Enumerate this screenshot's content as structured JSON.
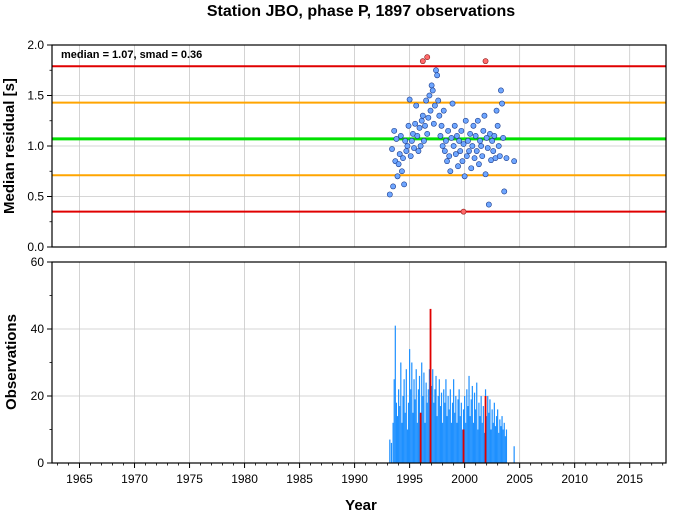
{
  "chart_data": [
    {
      "type": "scatter",
      "title": "Station JBO, phase P, 1897 observations",
      "ylabel": "Median residual [s]",
      "xlim": [
        1962.5,
        2018.3
      ],
      "ylim": [
        0.0,
        2.0
      ],
      "y_ticks": [
        "0.0",
        "0.5",
        "1.0",
        "1.5",
        "2.0"
      ],
      "annotation": "median = 1.07, smad = 0.36",
      "grid": true,
      "reference_lines": [
        {
          "y": 1.07,
          "color": "#00e000"
        },
        {
          "y": 1.43,
          "color": "#ffa500"
        },
        {
          "y": 0.71,
          "color": "#ffa500"
        },
        {
          "y": 1.79,
          "color": "#e00000"
        },
        {
          "y": 0.35,
          "color": "#e00000"
        }
      ],
      "point_color": "#6ea6ff",
      "outlier_color": "#ff6a6a",
      "points": [
        [
          1993.2,
          0.52
        ],
        [
          1993.4,
          0.97
        ],
        [
          1993.5,
          0.6
        ],
        [
          1993.6,
          1.15
        ],
        [
          1993.7,
          0.85
        ],
        [
          1993.8,
          1.07
        ],
        [
          1993.9,
          0.7
        ],
        [
          1994.0,
          0.82
        ],
        [
          1994.1,
          0.92
        ],
        [
          1994.2,
          1.1
        ],
        [
          1994.3,
          0.75
        ],
        [
          1994.4,
          0.88
        ],
        [
          1994.5,
          0.62
        ],
        [
          1994.6,
          1.05
        ],
        [
          1994.7,
          0.95
        ],
        [
          1994.8,
          1.0
        ],
        [
          1994.9,
          1.2
        ],
        [
          1995.0,
          1.46
        ],
        [
          1995.1,
          0.9
        ],
        [
          1995.2,
          1.05
        ],
        [
          1995.3,
          1.12
        ],
        [
          1995.4,
          0.98
        ],
        [
          1995.5,
          1.22
        ],
        [
          1995.6,
          1.4
        ],
        [
          1995.7,
          1.1
        ],
        [
          1995.8,
          0.95
        ],
        [
          1995.9,
          1.18
        ],
        [
          1996.0,
          1.0
        ],
        [
          1996.1,
          1.25
        ],
        [
          1996.2,
          1.3
        ],
        [
          1996.3,
          1.05
        ],
        [
          1996.4,
          1.2
        ],
        [
          1996.5,
          1.45
        ],
        [
          1996.6,
          1.12
        ],
        [
          1996.7,
          1.28
        ],
        [
          1996.8,
          1.5
        ],
        [
          1996.9,
          1.35
        ],
        [
          1997.0,
          1.6
        ],
        [
          1997.1,
          1.55
        ],
        [
          1997.2,
          1.22
        ],
        [
          1997.3,
          1.4
        ],
        [
          1997.4,
          1.75
        ],
        [
          1997.5,
          1.7
        ],
        [
          1997.6,
          1.45
        ],
        [
          1997.7,
          1.3
        ],
        [
          1997.8,
          1.1
        ],
        [
          1997.9,
          1.2
        ],
        [
          1998.0,
          1.0
        ],
        [
          1998.1,
          1.35
        ],
        [
          1998.2,
          0.95
        ],
        [
          1998.3,
          1.05
        ],
        [
          1998.4,
          0.85
        ],
        [
          1998.5,
          1.15
        ],
        [
          1998.6,
          0.9
        ],
        [
          1998.7,
          0.75
        ],
        [
          1998.8,
          1.08
        ],
        [
          1998.9,
          1.42
        ],
        [
          1999.0,
          1.0
        ],
        [
          1999.1,
          1.2
        ],
        [
          1999.2,
          0.92
        ],
        [
          1999.3,
          1.1
        ],
        [
          1999.4,
          0.8
        ],
        [
          1999.5,
          1.05
        ],
        [
          1999.6,
          0.95
        ],
        [
          1999.7,
          1.15
        ],
        [
          1999.8,
          0.85
        ],
        [
          1999.9,
          1.02
        ],
        [
          2000.0,
          0.7
        ],
        [
          2000.1,
          1.25
        ],
        [
          2000.2,
          0.9
        ],
        [
          2000.3,
          1.05
        ],
        [
          2000.4,
          0.95
        ],
        [
          2000.5,
          1.12
        ],
        [
          2000.6,
          0.78
        ],
        [
          2000.7,
          1.0
        ],
        [
          2000.8,
          1.2
        ],
        [
          2000.9,
          0.88
        ],
        [
          2001.0,
          1.1
        ],
        [
          2001.1,
          0.95
        ],
        [
          2001.2,
          1.25
        ],
        [
          2001.3,
          0.82
        ],
        [
          2001.4,
          1.05
        ],
        [
          2001.5,
          1.0
        ],
        [
          2001.6,
          0.9
        ],
        [
          2001.7,
          1.15
        ],
        [
          2001.8,
          1.3
        ],
        [
          2001.9,
          0.72
        ],
        [
          2002.0,
          1.08
        ],
        [
          2002.1,
          0.98
        ],
        [
          2002.2,
          0.42
        ],
        [
          2002.3,
          1.12
        ],
        [
          2002.4,
          0.86
        ],
        [
          2002.5,
          1.05
        ],
        [
          2002.6,
          0.95
        ],
        [
          2002.7,
          1.1
        ],
        [
          2002.8,
          0.88
        ],
        [
          2002.9,
          1.35
        ],
        [
          2003.0,
          1.2
        ],
        [
          2003.1,
          1.0
        ],
        [
          2003.2,
          0.9
        ],
        [
          2003.3,
          1.55
        ],
        [
          2003.4,
          1.42
        ],
        [
          2003.5,
          1.08
        ],
        [
          2003.6,
          0.55
        ],
        [
          2003.8,
          0.88
        ],
        [
          2004.5,
          0.85
        ]
      ],
      "outliers": [
        [
          1996.2,
          1.84
        ],
        [
          1996.6,
          1.88
        ],
        [
          2001.9,
          1.84
        ],
        [
          1999.9,
          0.35
        ]
      ]
    },
    {
      "type": "bar",
      "ylabel": "Observations",
      "xlabel": "Year",
      "xlim": [
        1962.5,
        2018.3
      ],
      "ylim": [
        0,
        60
      ],
      "y_ticks": [
        "0",
        "20",
        "40",
        "60"
      ],
      "x_ticks": [
        "1965",
        "1970",
        "1975",
        "1980",
        "1985",
        "1990",
        "1995",
        "2000",
        "2005",
        "2010",
        "2015"
      ],
      "grid": true,
      "bar_color": "#1e90ff",
      "highlight_color": "#e00000",
      "bars": [
        [
          1993.2,
          7
        ],
        [
          1993.35,
          6
        ],
        [
          1993.5,
          12
        ],
        [
          1993.6,
          25
        ],
        [
          1993.7,
          41
        ],
        [
          1993.8,
          18
        ],
        [
          1993.9,
          14
        ],
        [
          1994.0,
          22
        ],
        [
          1994.1,
          17
        ],
        [
          1994.2,
          30
        ],
        [
          1994.3,
          12
        ],
        [
          1994.4,
          20
        ],
        [
          1994.5,
          25
        ],
        [
          1994.6,
          15
        ],
        [
          1994.7,
          28
        ],
        [
          1994.8,
          10
        ],
        [
          1994.9,
          18
        ],
        [
          1995.0,
          34
        ],
        [
          1995.1,
          22
        ],
        [
          1995.2,
          30
        ],
        [
          1995.3,
          15
        ],
        [
          1995.4,
          25
        ],
        [
          1995.5,
          19
        ],
        [
          1995.6,
          28
        ],
        [
          1995.7,
          12
        ],
        [
          1995.8,
          22
        ],
        [
          1995.9,
          26
        ],
        [
          1996.0,
          15
        ],
        [
          1996.1,
          30
        ],
        [
          1996.2,
          20
        ],
        [
          1996.3,
          27
        ],
        [
          1996.4,
          12
        ],
        [
          1996.5,
          24
        ],
        [
          1996.6,
          18
        ],
        [
          1996.7,
          22
        ],
        [
          1996.8,
          28
        ],
        [
          1996.9,
          15
        ],
        [
          1997.0,
          23
        ],
        [
          1997.1,
          28
        ],
        [
          1997.2,
          18
        ],
        [
          1997.3,
          22
        ],
        [
          1997.4,
          26
        ],
        [
          1997.5,
          14
        ],
        [
          1997.6,
          20
        ],
        [
          1997.7,
          25
        ],
        [
          1997.8,
          17
        ],
        [
          1997.9,
          21
        ],
        [
          1998.0,
          12
        ],
        [
          1998.1,
          22
        ],
        [
          1998.2,
          18
        ],
        [
          1998.3,
          25
        ],
        [
          1998.4,
          14
        ],
        [
          1998.5,
          20
        ],
        [
          1998.6,
          16
        ],
        [
          1998.7,
          22
        ],
        [
          1998.8,
          12
        ],
        [
          1998.9,
          18
        ],
        [
          1999.0,
          25
        ],
        [
          1999.1,
          15
        ],
        [
          1999.2,
          20
        ],
        [
          1999.3,
          12
        ],
        [
          1999.4,
          19
        ],
        [
          1999.5,
          22
        ],
        [
          1999.6,
          14
        ],
        [
          1999.7,
          18
        ],
        [
          1999.8,
          10
        ],
        [
          1999.9,
          16
        ],
        [
          2000.0,
          20
        ],
        [
          2000.1,
          12
        ],
        [
          2000.2,
          22
        ],
        [
          2000.3,
          17
        ],
        [
          2000.4,
          26
        ],
        [
          2000.5,
          14
        ],
        [
          2000.6,
          19
        ],
        [
          2000.7,
          23
        ],
        [
          2000.8,
          12
        ],
        [
          2000.9,
          21
        ],
        [
          2001.0,
          16
        ],
        [
          2001.1,
          24
        ],
        [
          2001.2,
          10
        ],
        [
          2001.3,
          18
        ],
        [
          2001.4,
          14
        ],
        [
          2001.5,
          20
        ],
        [
          2001.6,
          12
        ],
        [
          2001.7,
          17
        ],
        [
          2001.8,
          9
        ],
        [
          2001.9,
          22
        ],
        [
          2002.0,
          14
        ],
        [
          2002.1,
          20
        ],
        [
          2002.2,
          15
        ],
        [
          2002.3,
          19
        ],
        [
          2002.4,
          10
        ],
        [
          2002.5,
          16
        ],
        [
          2002.6,
          12
        ],
        [
          2002.7,
          18
        ],
        [
          2002.8,
          11
        ],
        [
          2002.9,
          14
        ],
        [
          2003.0,
          16
        ],
        [
          2003.1,
          9
        ],
        [
          2003.2,
          13
        ],
        [
          2003.3,
          11
        ],
        [
          2003.4,
          14
        ],
        [
          2003.5,
          10
        ],
        [
          2003.6,
          12
        ],
        [
          2003.7,
          8
        ],
        [
          2003.8,
          10
        ],
        [
          2004.5,
          5
        ]
      ],
      "highlight_bars": [
        [
          1996.0,
          15
        ],
        [
          1996.9,
          46
        ],
        [
          1999.9,
          10
        ],
        [
          2001.9,
          20
        ]
      ]
    }
  ]
}
